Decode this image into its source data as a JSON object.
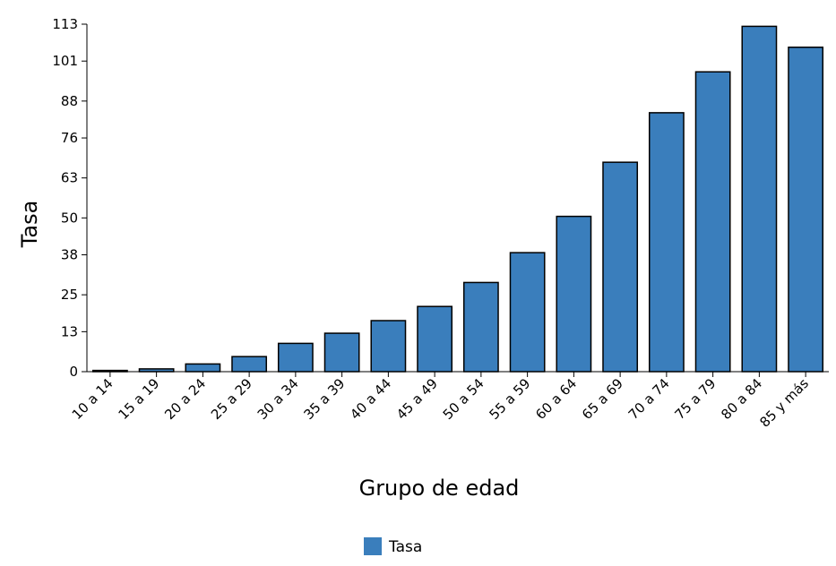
{
  "chart_data": {
    "type": "bar",
    "title": "",
    "xlabel": "Grupo de edad",
    "ylabel": "Tasa",
    "categories": [
      "10 a 14",
      "15 a 19",
      "20 a 24",
      "25 a 29",
      "30 a 34",
      "35 a 39",
      "40 a 44",
      "45 a 49",
      "50 a 54",
      "55 a 59",
      "60 a 64",
      "65 a 69",
      "70 a 74",
      "75 a 79",
      "80 a 84",
      "85 y más"
    ],
    "series": [
      {
        "name": "Tasa",
        "values": [
          0.4,
          0.9,
          2.5,
          4.9,
          9.2,
          12.5,
          16.6,
          21.2,
          29,
          38.7,
          50.5,
          68.1,
          84.2,
          97.5,
          112.3,
          105.5
        ]
      }
    ],
    "yticks": [
      "0",
      "13",
      "25",
      "38",
      "50",
      "63",
      "76",
      "88",
      "101",
      "113"
    ],
    "ylim": [
      0,
      113
    ],
    "grid": false,
    "legend": "bottom-center",
    "colors": {
      "bar": "#3a7ebc",
      "bar_stroke": "#000000"
    }
  }
}
